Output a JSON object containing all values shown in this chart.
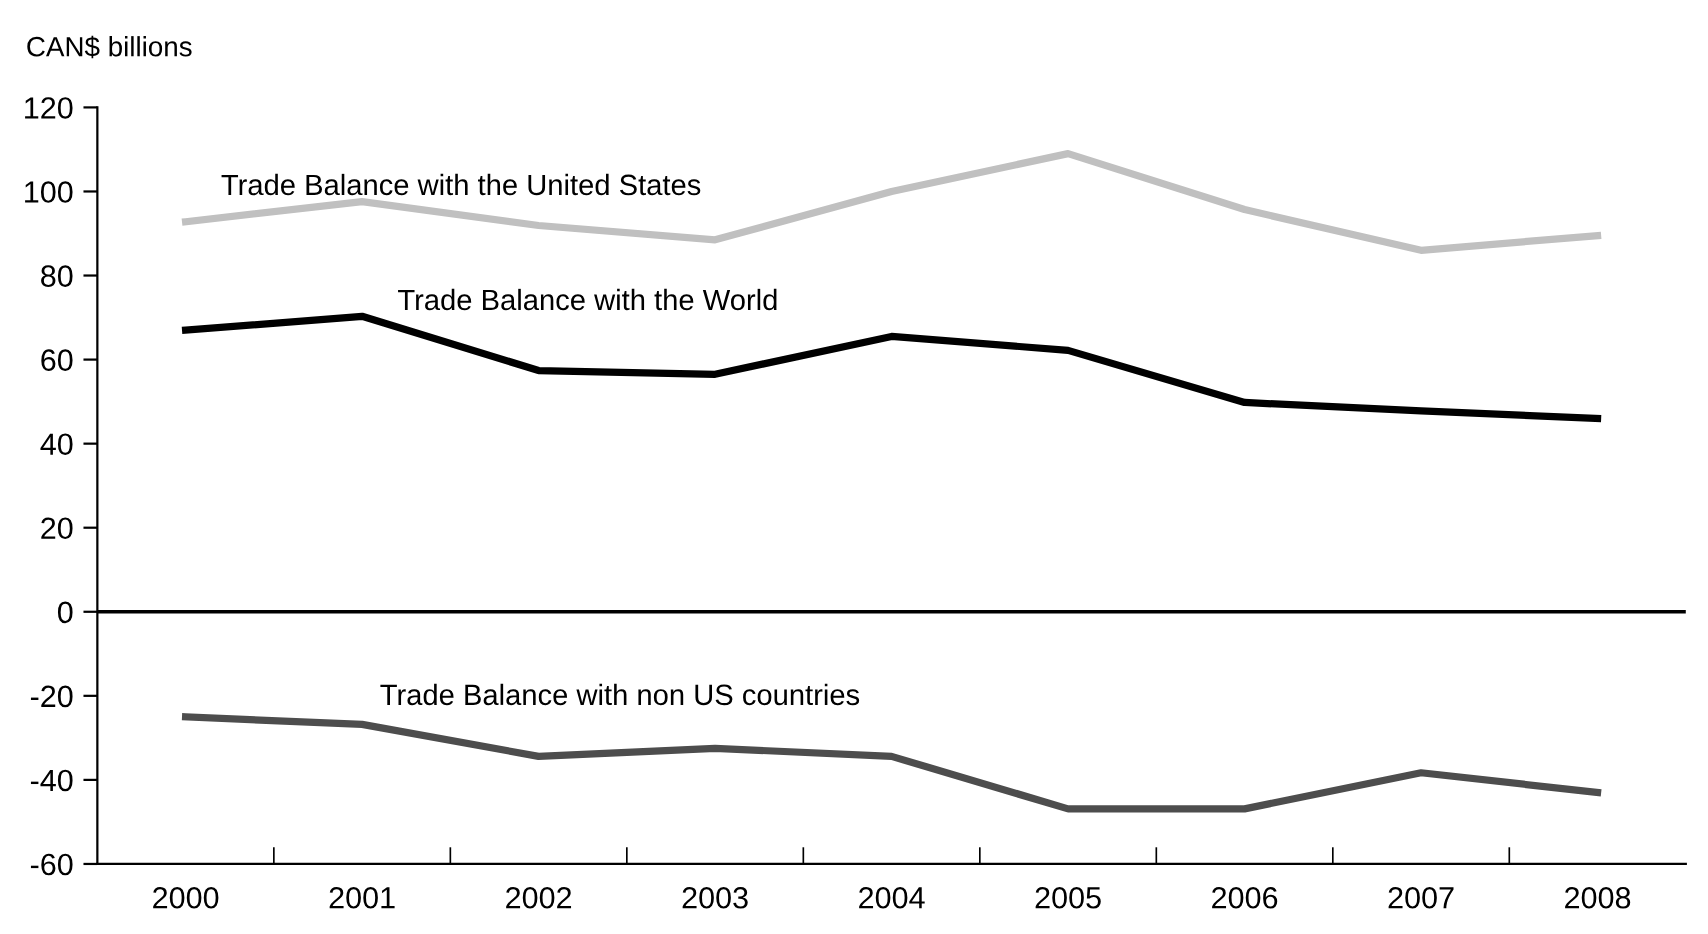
{
  "chart_data": {
    "type": "line",
    "ylabel": "CAN$ billions",
    "categories": [
      "2000",
      "2001",
      "2002",
      "2003",
      "2004",
      "2005",
      "2006",
      "2007",
      "2008"
    ],
    "series": [
      {
        "name": "Trade Balance with the United States",
        "color": "#c0c0c0",
        "values": [
          92.8,
          97.6,
          91.9,
          88.5,
          100,
          109,
          95.7,
          86,
          89.5
        ]
      },
      {
        "name": "Trade Balance with the World",
        "color": "#000000",
        "values": [
          67,
          70.3,
          57.4,
          56.5,
          65.5,
          62.2,
          49.8,
          47.8,
          46
        ]
      },
      {
        "name": "Trade Balance with non US countries",
        "color": "#4d4d4d",
        "values": [
          -25,
          -26.8,
          -34.4,
          -32.5,
          -34.4,
          -46.9,
          -46.9,
          -38.3,
          -43
        ]
      }
    ],
    "ylim": [
      -60,
      120
    ],
    "yticks": [
      -60,
      -40,
      -20,
      0,
      20,
      40,
      60,
      80,
      100,
      120
    ],
    "ref_lines": [
      {
        "axis": "y",
        "value": 0,
        "color": "#000000"
      }
    ],
    "grid": false,
    "legend": false,
    "marker": "none",
    "line_style": "solid"
  }
}
